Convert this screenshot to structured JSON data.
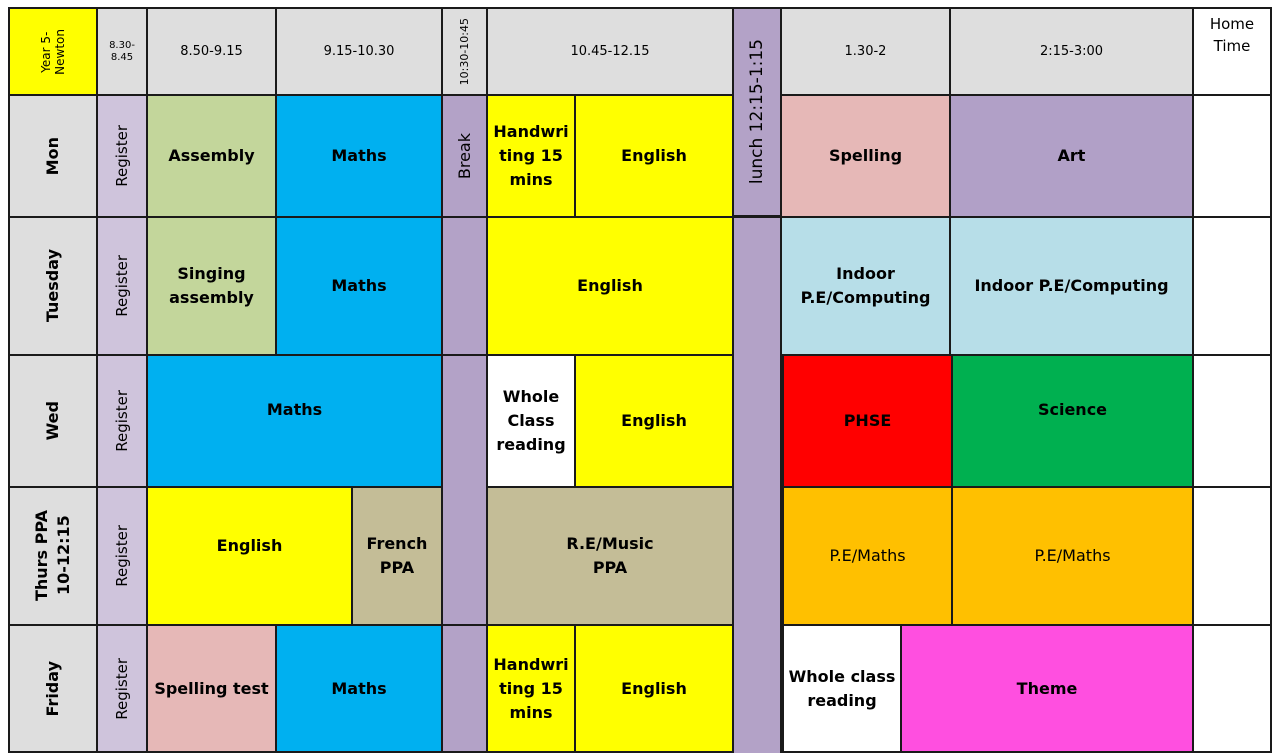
{
  "header": {
    "class_name": "Year 5-\nNewton",
    "t_register": "8.30-\n8.45",
    "t1": "8.50-9.15",
    "t2": "9.15-10.30",
    "t_break": "10:30-10:45",
    "t3": "10.45-12.15",
    "t_lunch": "lunch 12:15-1:15",
    "t4": "1.30-2",
    "t5": "2:15-3:00",
    "t_home": "Home\nTime"
  },
  "days": {
    "mon": "Mon",
    "tue": "Tuesday",
    "wed": "Wed",
    "thu": "Thurs PPA\n10-12:15",
    "fri": "Friday"
  },
  "register_label": "Register",
  "break_label": "Break",
  "mon": {
    "assembly": "Assembly",
    "maths": "Maths",
    "handwriting": "Handwri\nting 15\nmins",
    "english": "English",
    "spelling": "Spelling",
    "art": "Art"
  },
  "tue": {
    "singing": "Singing\nassembly",
    "maths": "Maths",
    "english": "English",
    "indoor_pe1": "Indoor\nP.E/Computing",
    "indoor_pe2": "Indoor P.E/Computing"
  },
  "wed": {
    "maths": "Maths",
    "whole_class": "Whole\nClass\nreading",
    "english": "English",
    "phse": "PHSE",
    "science": "Science"
  },
  "thu": {
    "english": "English",
    "french": "French\nPPA",
    "re_music": "R.E/Music\nPPA",
    "pe_maths1": "P.E/Maths",
    "pe_maths2": "P.E/Maths"
  },
  "fri": {
    "spelling_test": "Spelling test",
    "maths": "Maths",
    "handwriting": "Handwri\nting 15\nmins",
    "english": "English",
    "whole_class": "Whole class\nreading",
    "theme": "Theme"
  }
}
